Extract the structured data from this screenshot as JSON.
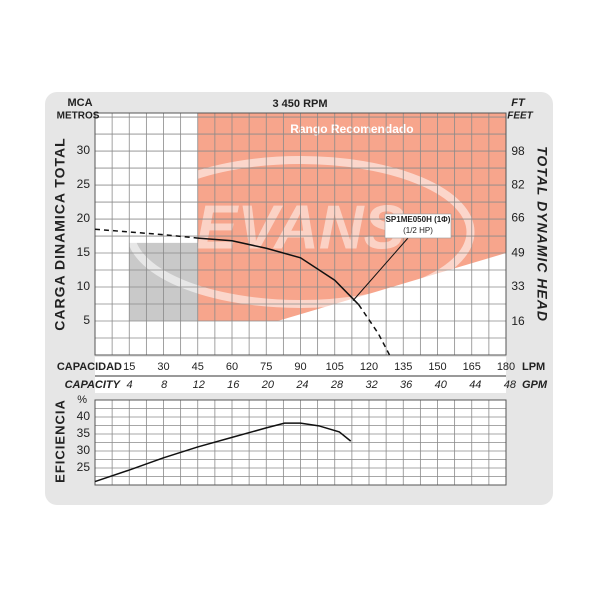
{
  "chart_data": [
    {
      "type": "line",
      "title": "3 450 RPM",
      "watermark": "EVANS",
      "ylabel": "CARGA DINAMICA TOTAL",
      "yunit": "MCA",
      "yunit_name": "METROS",
      "y2label": "TOTAL DYNAMIC HEAD",
      "y2unit": "FT",
      "y2unit_name": "FEET",
      "xlabel": "CAPACIDAD",
      "xunit": "LPM",
      "x2label": "CAPACITY",
      "x2unit": "GPM",
      "xlim": [
        0,
        180
      ],
      "xticks": [
        15,
        30,
        45,
        60,
        75,
        90,
        105,
        120,
        135,
        150,
        165,
        180
      ],
      "x2lim": [
        0,
        47.55
      ],
      "x2ticks": [
        4,
        8,
        12,
        16,
        20,
        24,
        28,
        32,
        36,
        40,
        44,
        48
      ],
      "ylim": [
        0,
        35.6
      ],
      "yticks": [
        5,
        10,
        15,
        20,
        25,
        30
      ],
      "y2lim": [
        0,
        116.8
      ],
      "y2ticks": [
        16,
        33,
        49,
        66,
        82,
        98
      ],
      "xgrid": [
        7.5,
        15,
        22.5,
        30,
        37.5,
        45,
        52.5,
        60,
        67.5,
        75,
        82.5,
        90,
        97.5,
        105,
        112.5,
        120,
        127.5,
        135,
        142.5,
        150,
        157.5,
        165,
        172.5
      ],
      "ygrid": [
        2.5,
        5,
        7.5,
        10,
        12.5,
        15,
        17.5,
        20,
        22.5,
        25,
        27.5,
        30,
        32.5,
        35
      ],
      "regions": [
        {
          "name": "Rango Recomendado",
          "color": "#f7a58c",
          "x": [
            45,
            180,
            180,
            80,
            45
          ],
          "y": [
            35.6,
            35.6,
            15,
            5,
            5
          ]
        },
        {
          "color": "#c9c9c9",
          "x": [
            15,
            45,
            45,
            15
          ],
          "y": [
            16.5,
            16.5,
            5,
            5
          ]
        }
      ],
      "curves": [
        {
          "style": "dashed",
          "color": "#111111",
          "x": [
            0,
            15,
            30,
            45
          ],
          "values": [
            18.5,
            18.1,
            17.7,
            17.2
          ]
        },
        {
          "style": "solid",
          "color": "#111111",
          "x": [
            45,
            60,
            75,
            90,
            105,
            115.5
          ],
          "values": [
            17.2,
            16.8,
            15.7,
            14.3,
            11,
            7.4
          ]
        },
        {
          "style": "dashed",
          "color": "#111111",
          "x": [
            115.5,
            124,
            129
          ],
          "values": [
            7.4,
            3.2,
            0
          ]
        }
      ],
      "annotation": {
        "text": [
          "SP1ME050H (1Φ)",
          "(1/2 HP)"
        ],
        "x": 113,
        "y": 8
      }
    },
    {
      "type": "line",
      "ylabel": "EFICIENCIA",
      "yunit": "%",
      "xlim": [
        0,
        180
      ],
      "ylim": [
        20,
        45
      ],
      "yticks": [
        25,
        30,
        35,
        40
      ],
      "xgrid": [
        7.5,
        15,
        22.5,
        30,
        37.5,
        45,
        52.5,
        60,
        67.5,
        75,
        82.5,
        90,
        97.5,
        105,
        112.5,
        120,
        127.5,
        135,
        142.5,
        150,
        157.5,
        165,
        172.5
      ],
      "ygrid": [
        22.5,
        25,
        27.5,
        30,
        32.5,
        35,
        37.5,
        40,
        42.5
      ],
      "curves": [
        {
          "style": "solid",
          "color": "#111111",
          "x": [
            0,
            15,
            30,
            45,
            60,
            75,
            83,
            90,
            98,
            107,
            112
          ],
          "values": [
            21,
            24.4,
            28,
            31.2,
            34,
            36.8,
            38.2,
            38.2,
            37.4,
            35.6,
            32.9
          ]
        }
      ]
    }
  ]
}
